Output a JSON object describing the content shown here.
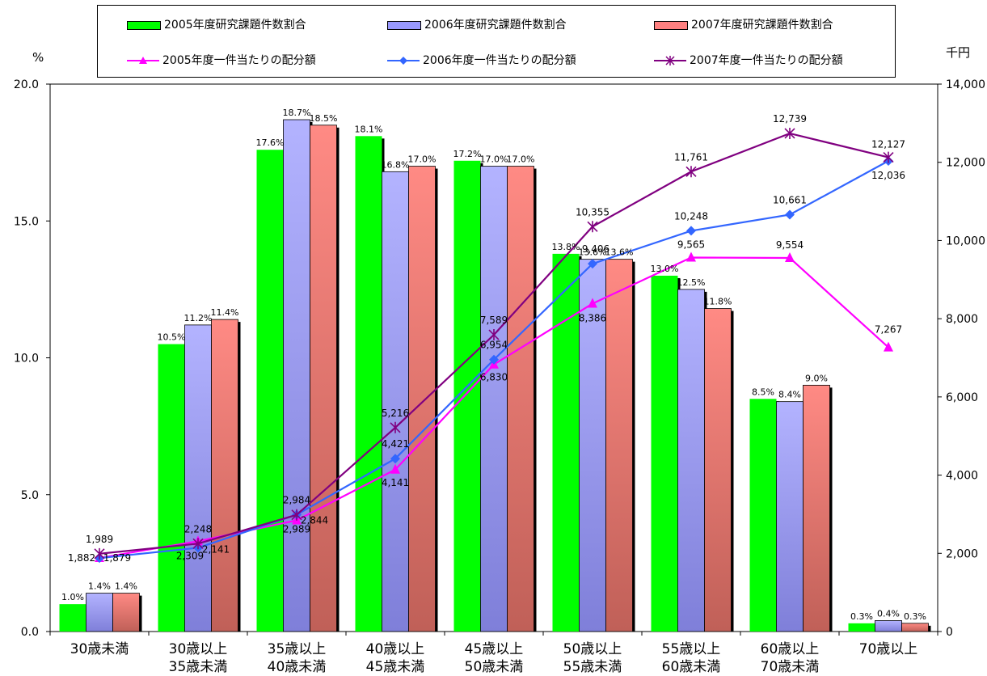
{
  "legend": {
    "bar2005": "2005年度研究課題件数割合",
    "bar2006": "2006年度研究課題件数割合",
    "bar2007": "2007年度研究課題件数割合",
    "line2005": "2005年度一件当たりの配分額",
    "line2006": "2006年度一件当たりの配分額",
    "line2007": "2007年度一件当たりの配分額"
  },
  "units": {
    "left": "%",
    "right": "千円"
  },
  "colors": {
    "bar2005": "#00ff00",
    "bar2006": "#9999ff",
    "bar2007": "#ff8080",
    "line2005": "#ff00ff",
    "line2006": "#3366ff",
    "line2007": "#800080"
  },
  "chart_data": {
    "type": "bar",
    "categories": [
      [
        "30歳未満"
      ],
      [
        "30歳以上",
        "35歳未満"
      ],
      [
        "35歳以上",
        "40歳未満"
      ],
      [
        "40歳以上",
        "45歳未満"
      ],
      [
        "45歳以上",
        "50歳未満"
      ],
      [
        "50歳以上",
        "55歳未満"
      ],
      [
        "55歳以上",
        "60歳未満"
      ],
      [
        "60歳以上",
        "70歳未満"
      ],
      [
        "70歳以上"
      ]
    ],
    "y_left": {
      "range": [
        0,
        20
      ],
      "ticks": [
        "0.0",
        "5.0",
        "10.0",
        "15.0",
        "20.0"
      ]
    },
    "y_right": {
      "range": [
        0,
        14000
      ],
      "ticks": [
        "0",
        "2,000",
        "4,000",
        "6,000",
        "8,000",
        "10,000",
        "12,000",
        "14,000"
      ]
    },
    "bar_series": [
      {
        "name": "2005年度研究課題件数割合",
        "values": [
          1.0,
          10.5,
          17.6,
          18.1,
          17.2,
          13.8,
          13.0,
          8.5,
          0.3
        ],
        "labels": [
          "1.0%",
          "10.5%",
          "17.6%",
          "18.1%",
          "17.2%",
          "13.8%",
          "13.0%",
          "8.5%",
          "0.3%"
        ]
      },
      {
        "name": "2006年度研究課題件数割合",
        "values": [
          1.4,
          11.2,
          18.7,
          16.8,
          17.0,
          13.6,
          12.5,
          8.4,
          0.4
        ],
        "labels": [
          "1.4%",
          "11.2%",
          "18.7%",
          "16.8%",
          "17.0%",
          "13.6%",
          "12.5%",
          "8.4%",
          "0.4%"
        ]
      },
      {
        "name": "2007年度研究課題件数割合",
        "values": [
          1.4,
          11.4,
          18.5,
          17.0,
          17.0,
          13.6,
          11.8,
          9.0,
          0.3
        ],
        "labels": [
          "1.4%",
          "11.4%",
          "18.5%",
          "17.0%",
          "17.0%",
          "13.6%",
          "11.8%",
          "9.0%",
          "0.3%"
        ]
      }
    ],
    "line_series": [
      {
        "name": "2005年度一件当たりの配分額",
        "values": [
          1882,
          2309,
          2844,
          4141,
          6830,
          8386,
          9565,
          9554,
          7267
        ],
        "labels": [
          "1,882",
          "2,309",
          "2,844",
          "4,141",
          "6,830",
          "8,386",
          "9,565",
          "9,554",
          "7,267"
        ]
      },
      {
        "name": "2006年度一件当たりの配分額",
        "values": [
          1879,
          2141,
          2989,
          4421,
          6954,
          9406,
          10248,
          10661,
          12036
        ],
        "labels": [
          "1,879",
          "2,141",
          "2,989",
          "4,421",
          "6,954",
          "9,406",
          "10,248",
          "10,661",
          "12,036"
        ]
      },
      {
        "name": "2007年度一件当たりの配分額",
        "values": [
          1989,
          2248,
          2984,
          5216,
          7589,
          10355,
          11761,
          12739,
          12127
        ],
        "labels": [
          "1,989",
          "2,248",
          "2,984",
          "5,216",
          "7,589",
          "10,355",
          "11,761",
          "12,739",
          "12,127"
        ]
      }
    ]
  }
}
